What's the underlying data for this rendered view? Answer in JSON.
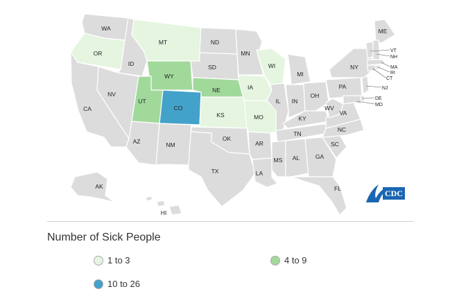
{
  "colors": {
    "none": "#dcdcdc",
    "low": "#e5f5e0",
    "mid": "#a1d99b",
    "high": "#43a2ca"
  },
  "states": {
    "WA": "WA",
    "OR": "OR",
    "CA": "CA",
    "ID": "ID",
    "NV": "NV",
    "MT": "MT",
    "WY": "WY",
    "UT": "UT",
    "AZ": "AZ",
    "CO": "CO",
    "NM": "NM",
    "ND": "ND",
    "SD": "SD",
    "NE": "NE",
    "KS": "KS",
    "OK": "OK",
    "TX": "TX",
    "MN": "MN",
    "IA": "IA",
    "MO": "MO",
    "AR": "AR",
    "LA": "LA",
    "WI": "WI",
    "IL": "IL",
    "MI": "MI",
    "IN": "IN",
    "OH": "OH",
    "KY": "KY",
    "TN": "TN",
    "MS": "MS",
    "AL": "AL",
    "GA": "GA",
    "FL": "FL",
    "SC": "SC",
    "NC": "NC",
    "VA": "VA",
    "WV": "WV",
    "PA": "PA",
    "NY": "NY",
    "ME": "ME",
    "VT": "VT",
    "NH": "NH",
    "MA": "MA",
    "RI": "RI",
    "CT": "CT",
    "NJ": "NJ",
    "DE": "DE",
    "MD": "MD",
    "AK": "AK",
    "HI": "HI"
  },
  "logo": {
    "text": "CDC"
  },
  "legend": {
    "title": "Number of Sick People",
    "items": [
      {
        "label": "1 to 3",
        "color": "#e5f5e0"
      },
      {
        "label": "4 to 9",
        "color": "#a1d99b"
      },
      {
        "label": "10 to 26",
        "color": "#43a2ca"
      }
    ]
  }
}
